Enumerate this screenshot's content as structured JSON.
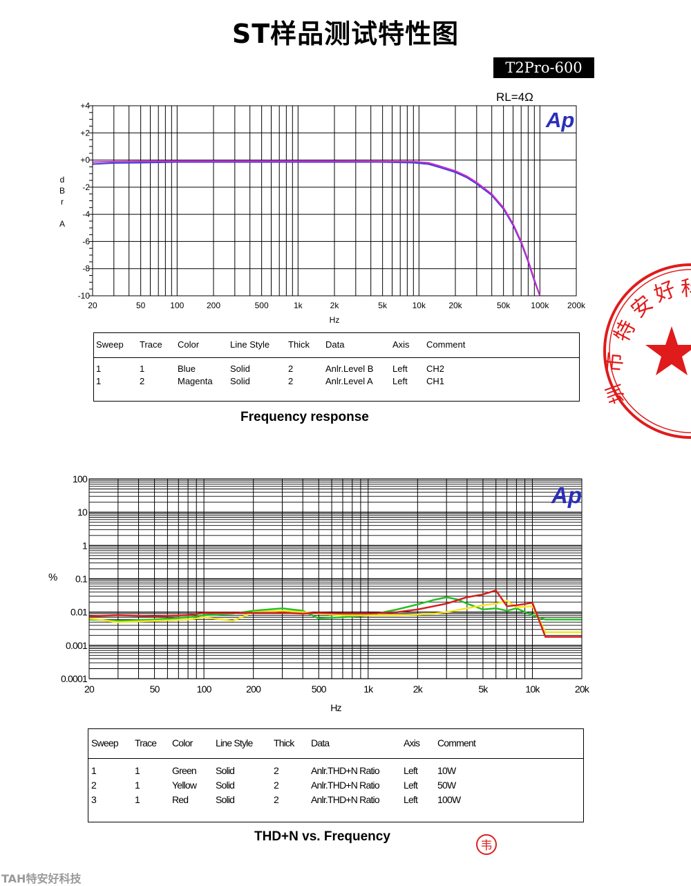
{
  "page": {
    "title": "ST样品测试特性图",
    "model": "T2Pro-600",
    "footer": "TAH特安好科技"
  },
  "stamp": {
    "text": "市特安好科技有",
    "color": "#e01b1b"
  },
  "chart_data": [
    {
      "type": "line",
      "id": "frequency-response",
      "title": "Frequency response",
      "annotation": "RL=4Ω",
      "logo": "Ap",
      "xlabel": "Hz",
      "ylabel": [
        "d",
        "B",
        "r",
        "",
        "A"
      ],
      "xscale": "log",
      "xlim": [
        20,
        200000
      ],
      "ylim": [
        -10,
        4
      ],
      "x_ticks": [
        20,
        50,
        100,
        200,
        500,
        1000,
        2000,
        5000,
        10000,
        20000,
        50000,
        100000,
        200000
      ],
      "x_tick_labels": [
        "20",
        "50",
        "100",
        "200",
        "500",
        "1k",
        "2k",
        "5k",
        "10k",
        "20k",
        "50k",
        "100k",
        "200k"
      ],
      "y_ticks": [
        4,
        2,
        0,
        -2,
        -4,
        -6,
        -8,
        -10
      ],
      "y_tick_labels": [
        "+4",
        "+2",
        "+0",
        "-2",
        "-4",
        "-6",
        "-8",
        "-10"
      ],
      "series": [
        {
          "name": "CH2",
          "color": "#3d3ddb",
          "x": [
            20,
            30,
            50,
            100,
            200,
            500,
            1000,
            2000,
            5000,
            9000,
            12000,
            15000,
            20000,
            25000,
            30000,
            40000,
            50000,
            60000,
            70000,
            80000,
            90000,
            100000
          ],
          "y": [
            -0.3,
            -0.22,
            -0.2,
            -0.15,
            -0.15,
            -0.15,
            -0.15,
            -0.15,
            -0.15,
            -0.2,
            -0.3,
            -0.55,
            -0.9,
            -1.3,
            -1.75,
            -2.6,
            -3.6,
            -4.8,
            -6.1,
            -7.5,
            -8.9,
            -10
          ]
        },
        {
          "name": "CH1",
          "color": "#cc2bcc",
          "x": [
            20,
            30,
            50,
            100,
            200,
            500,
            1000,
            2000,
            5000,
            9000,
            12000,
            15000,
            20000,
            25000,
            30000,
            40000,
            50000,
            60000,
            70000,
            80000,
            90000,
            100000
          ],
          "y": [
            -0.15,
            -0.12,
            -0.1,
            -0.08,
            -0.08,
            -0.08,
            -0.08,
            -0.08,
            -0.1,
            -0.12,
            -0.2,
            -0.45,
            -0.8,
            -1.2,
            -1.65,
            -2.5,
            -3.5,
            -4.7,
            -6.0,
            -7.4,
            -8.8,
            -10
          ]
        }
      ],
      "legend": {
        "headers": [
          "Sweep",
          "Trace",
          "Color",
          "Line Style",
          "Thick",
          "Data",
          "Axis",
          "Comment"
        ],
        "rows": [
          [
            "1",
            "1",
            "Blue",
            "Solid",
            "2",
            "Anlr.Level B",
            "Left",
            "CH2"
          ],
          [
            "1",
            "2",
            "Magenta",
            "Solid",
            "2",
            "Anlr.Level A",
            "Left",
            "CH1"
          ]
        ]
      }
    },
    {
      "type": "line",
      "id": "thd-n",
      "title": "THD+N  vs. Frequency",
      "logo": "Ap",
      "xlabel": "Hz",
      "ylabel": "%",
      "xscale": "log",
      "yscale": "log",
      "xlim": [
        20,
        20000
      ],
      "ylim": [
        0.0001,
        100
      ],
      "x_ticks": [
        20,
        50,
        100,
        200,
        500,
        1000,
        2000,
        5000,
        10000,
        20000
      ],
      "x_tick_labels": [
        "20",
        "50",
        "100",
        "200",
        "500",
        "1k",
        "2k",
        "5k",
        "10k",
        "20k"
      ],
      "y_ticks": [
        100,
        10,
        1,
        0.1,
        0.01,
        0.001,
        0.0001
      ],
      "y_tick_labels": [
        "100",
        "10",
        "1",
        "0.1",
        "0.01",
        "0.001",
        "0.0001"
      ],
      "series": [
        {
          "name": "10W",
          "color": "#22c022",
          "x": [
            20,
            30,
            50,
            80,
            100,
            150,
            200,
            300,
            400,
            500,
            700,
            1000,
            1500,
            2000,
            2500,
            3000,
            3500,
            4000,
            5000,
            6000,
            7000,
            8000,
            10000,
            12000,
            20000
          ],
          "y": [
            0.006,
            0.0055,
            0.006,
            0.007,
            0.008,
            0.009,
            0.011,
            0.013,
            0.011,
            0.0065,
            0.007,
            0.008,
            0.012,
            0.017,
            0.023,
            0.028,
            0.024,
            0.018,
            0.012,
            0.013,
            0.011,
            0.013,
            0.008,
            0.006,
            0.006
          ]
        },
        {
          "name": "50W",
          "color": "#f5e51f",
          "x": [
            20,
            30,
            50,
            80,
            100,
            150,
            200,
            300,
            400,
            500,
            700,
            1000,
            1500,
            2000,
            2500,
            3000,
            4000,
            5000,
            6000,
            7000,
            8000,
            10000,
            12000,
            20000
          ],
          "y": [
            0.0065,
            0.005,
            0.0055,
            0.006,
            0.007,
            0.0055,
            0.01,
            0.011,
            0.01,
            0.009,
            0.008,
            0.008,
            0.008,
            0.0085,
            0.009,
            0.01,
            0.013,
            0.016,
            0.018,
            0.022,
            0.014,
            0.015,
            0.0025,
            0.0025
          ]
        },
        {
          "name": "100W",
          "color": "#d41f1f",
          "x": [
            20,
            30,
            50,
            80,
            100,
            150,
            200,
            300,
            400,
            500,
            700,
            1000,
            1500,
            2000,
            3000,
            4000,
            5000,
            6000,
            7000,
            8000,
            10000,
            12000,
            20000
          ],
          "y": [
            0.0075,
            0.008,
            0.0075,
            0.008,
            0.0095,
            0.0095,
            0.0095,
            0.0095,
            0.009,
            0.0095,
            0.009,
            0.009,
            0.01,
            0.012,
            0.018,
            0.028,
            0.034,
            0.045,
            0.015,
            0.016,
            0.019,
            0.0018,
            0.0018
          ]
        }
      ],
      "legend": {
        "headers": [
          "Sweep",
          "Trace",
          "Color",
          "Line Style",
          "Thick",
          "Data",
          "Axis",
          "Comment"
        ],
        "rows": [
          [
            "1",
            "1",
            "Green",
            "Solid",
            "2",
            "Anlr.THD+N Ratio",
            "Left",
            "10W"
          ],
          [
            "2",
            "1",
            "Yellow",
            "Solid",
            "2",
            "Anlr.THD+N Ratio",
            "Left",
            "50W"
          ],
          [
            "3",
            "1",
            "Red",
            "Solid",
            "2",
            "Anlr.THD+N Ratio",
            "Left",
            "100W"
          ]
        ]
      }
    }
  ]
}
